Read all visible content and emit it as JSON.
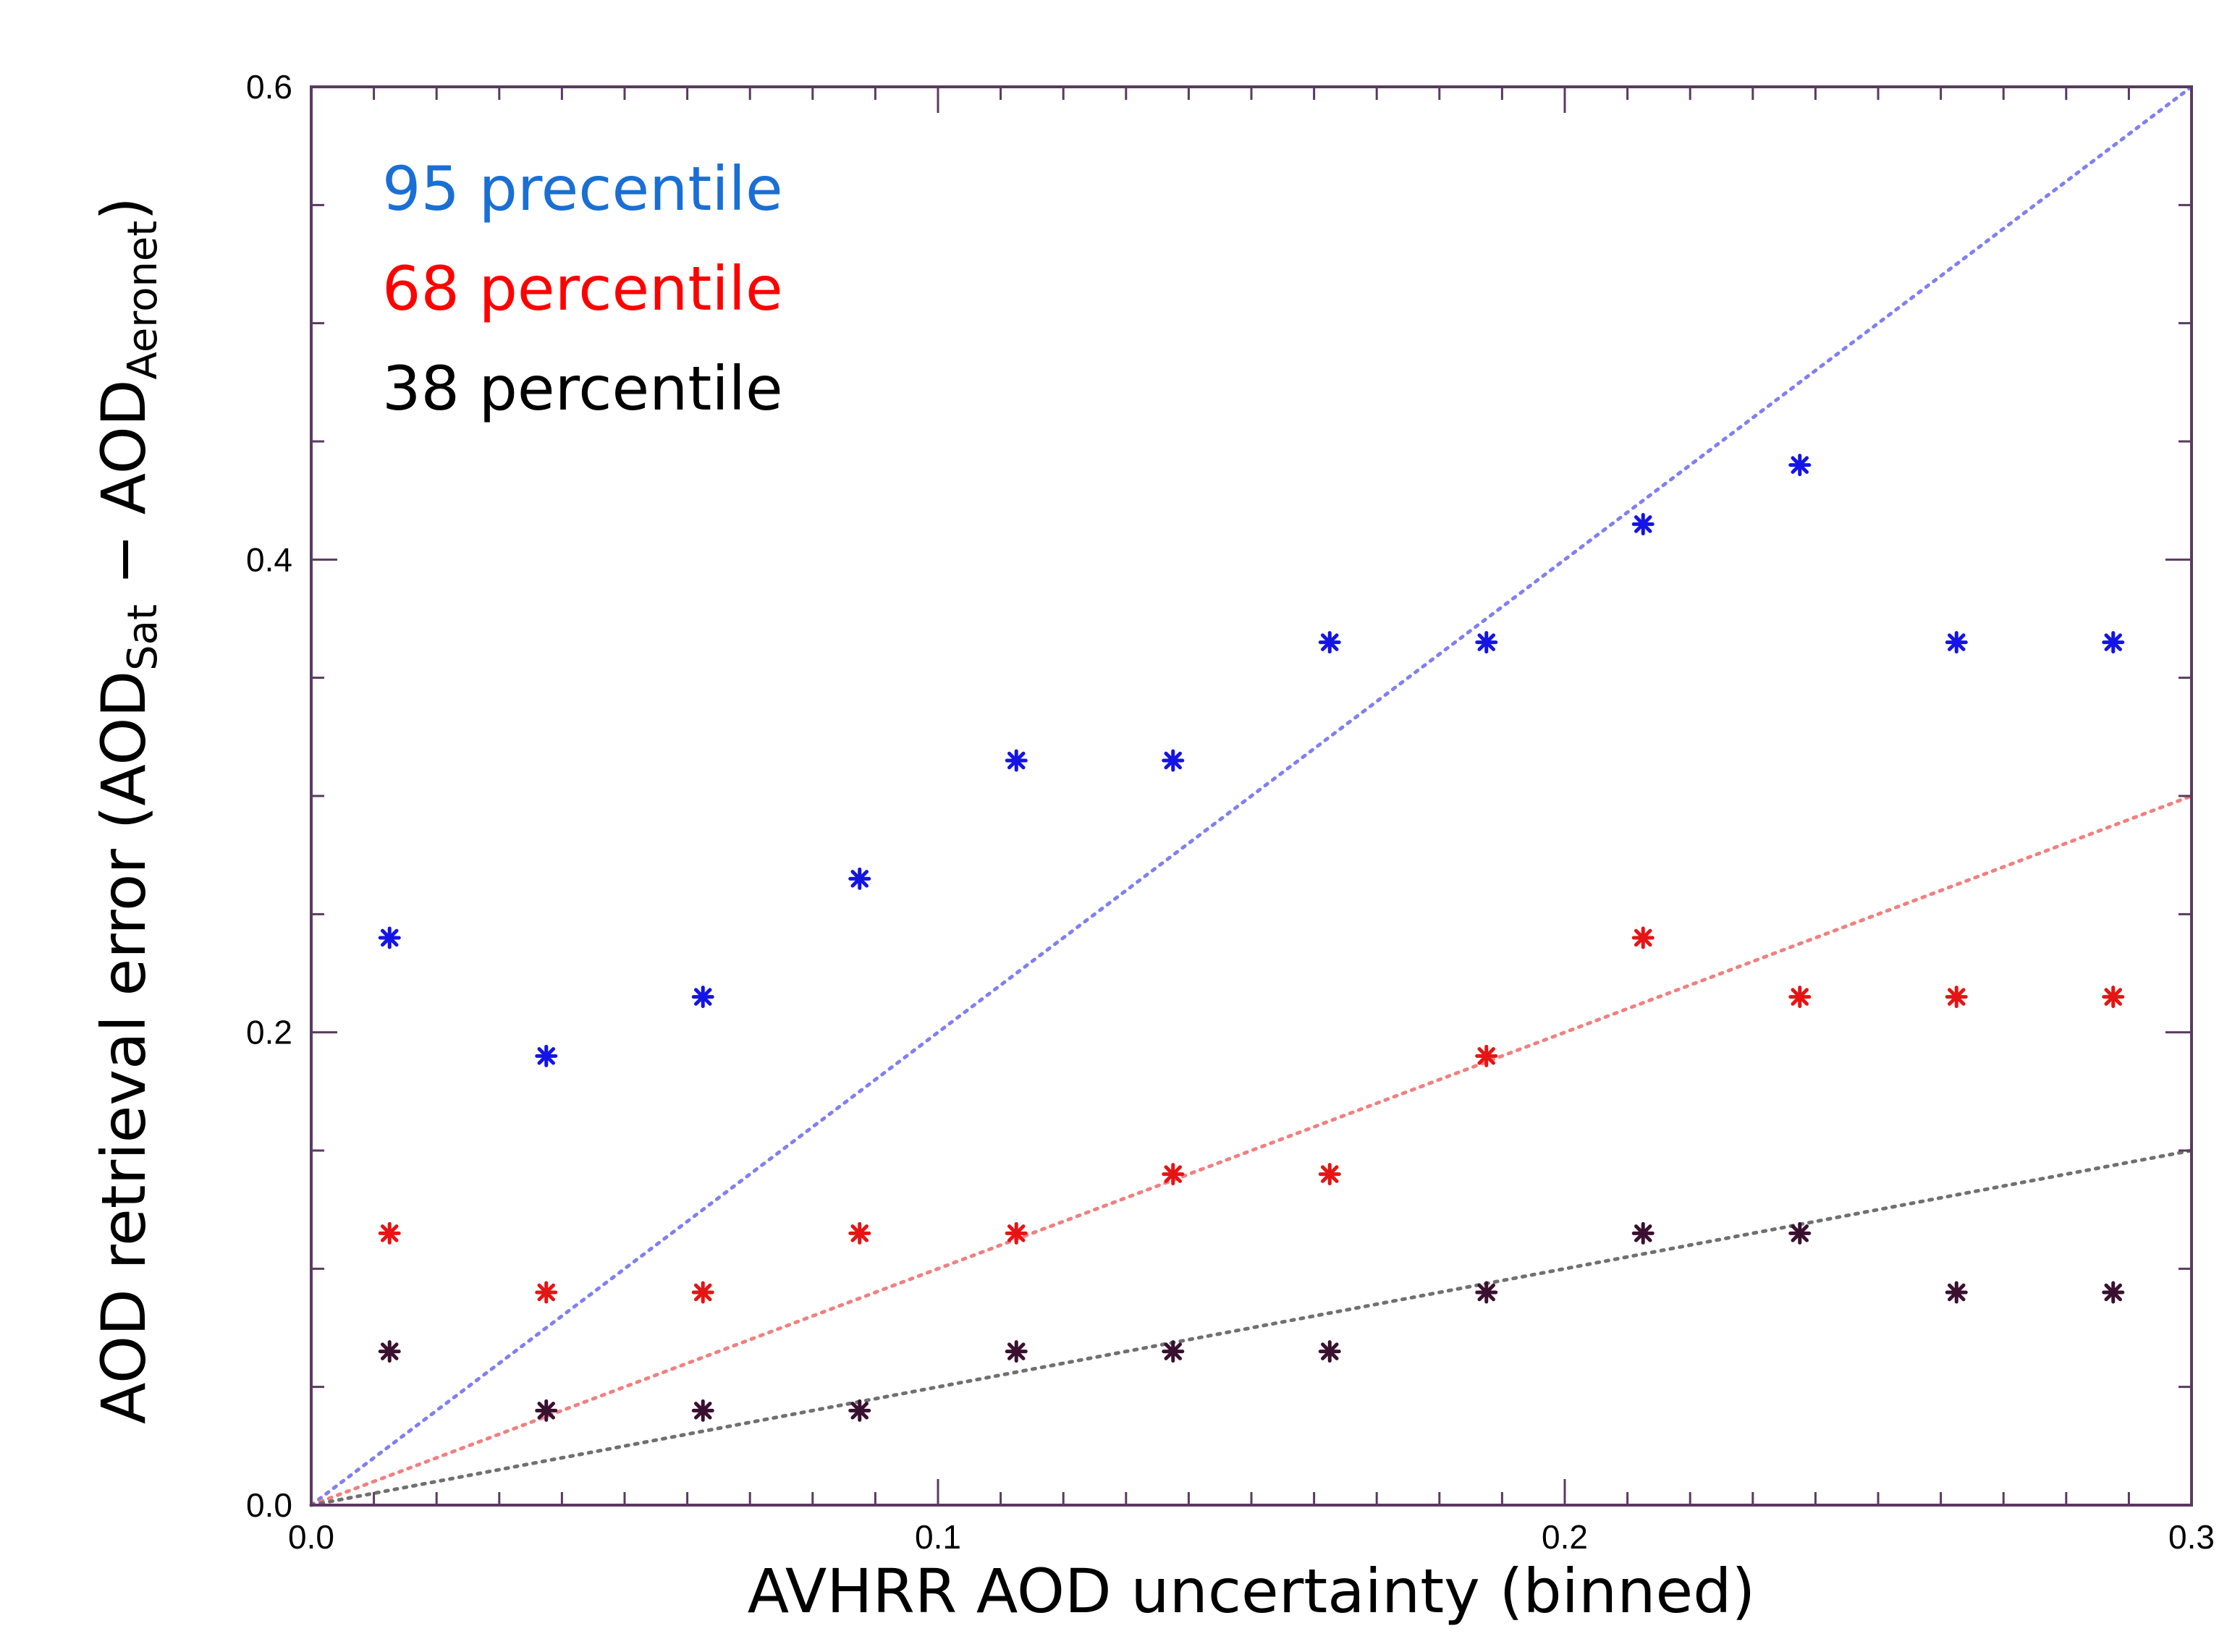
{
  "chart_data": {
    "type": "scatter",
    "title": "",
    "xlabel": "AVHRR AOD uncertainty (binned)",
    "ylabel": {
      "prefix": "AOD retrieval error (AOD",
      "sub1": "Sat",
      "middle": " − AOD",
      "sub2": "Aeronet",
      "suffix": ")"
    },
    "xlim": [
      0.0,
      0.3
    ],
    "ylim": [
      0.0,
      0.6
    ],
    "x_ticks": [
      {
        "value": 0.0,
        "label": "0.0"
      },
      {
        "value": 0.1,
        "label": "0.1"
      },
      {
        "value": 0.2,
        "label": "0.2"
      },
      {
        "value": 0.3,
        "label": "0.3"
      }
    ],
    "y_ticks": [
      {
        "value": 0.0,
        "label": "0.0"
      },
      {
        "value": 0.2,
        "label": "0.2"
      },
      {
        "value": 0.4,
        "label": "0.4"
      },
      {
        "value": 0.6,
        "label": "0.6"
      }
    ],
    "x_minor_step": 0.01,
    "y_minor_step": 0.05,
    "grid": false,
    "legend_position": "top-left",
    "x": [
      0.0125,
      0.0375,
      0.0625,
      0.0875,
      0.1125,
      0.1375,
      0.1625,
      0.1875,
      0.2125,
      0.2375,
      0.2625,
      0.2875
    ],
    "series": [
      {
        "name": "95 precentile",
        "color": "#1a6fd4",
        "marker_color": "#1414e6",
        "values": [
          0.24,
          0.19,
          0.215,
          0.265,
          0.315,
          0.315,
          0.365,
          0.365,
          0.415,
          0.44,
          0.365,
          0.365
        ],
        "reference_line": {
          "slope": 2.0,
          "color": "#8080f0",
          "style": "dotted"
        }
      },
      {
        "name": "68 percentile",
        "color": "#ff0000",
        "marker_color": "#e61414",
        "values": [
          0.115,
          0.09,
          0.09,
          0.115,
          0.115,
          0.14,
          0.14,
          0.19,
          0.24,
          0.215,
          0.215,
          0.215
        ],
        "reference_line": {
          "slope": 1.0,
          "color": "#f08080",
          "style": "dotted"
        }
      },
      {
        "name": "38 percentile",
        "color": "#000000",
        "marker_color": "#3a1030",
        "values": [
          0.065,
          0.04,
          0.04,
          0.04,
          0.065,
          0.065,
          0.065,
          0.09,
          0.115,
          0.115,
          0.09,
          0.09
        ],
        "reference_line": {
          "slope": 0.5,
          "color": "#707070",
          "style": "dotted"
        }
      }
    ],
    "frame_color": "#5a3a60"
  }
}
